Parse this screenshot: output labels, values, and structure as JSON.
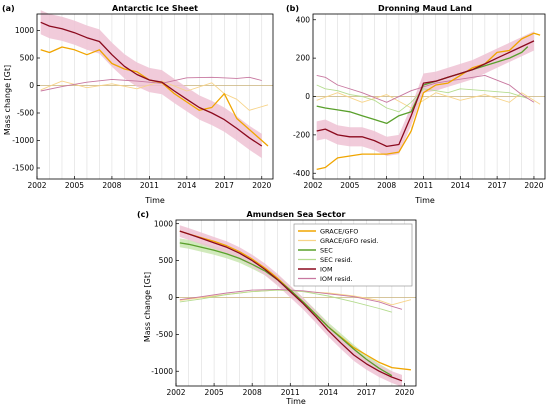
{
  "colors": {
    "grace": "#f0a500",
    "grace_resid": "#f7d48a",
    "sec": "#5aa02c",
    "sec_resid": "#b5dc8f",
    "iom": "#8b0a1e",
    "iom_resid": "#c878a0",
    "band_grace": "#fbe2a8",
    "band_sec": "#c9e6b0",
    "band_iom": "#eec2d4"
  },
  "chart_data": [
    {
      "panel": "(a)",
      "type": "line",
      "title": "Antarctic Ice Sheet",
      "xlabel": "Time",
      "ylabel": "Mass change [Gt]",
      "xlim": [
        2002,
        2020.9
      ],
      "ylim": [
        -1700,
        1300
      ],
      "xticks": [
        2002,
        2005,
        2008,
        2011,
        2014,
        2017,
        2020
      ],
      "yticks": [
        -1500,
        -1000,
        -500,
        0,
        500,
        1000
      ],
      "grid_x": true,
      "series": [
        {
          "key": "grace",
          "x": [
            2002.3,
            2003,
            2004,
            2005,
            2006,
            2007,
            2008,
            2009,
            2010,
            2011,
            2012,
            2013,
            2014,
            2015,
            2016,
            2017,
            2018,
            2019,
            2020.5
          ],
          "y": [
            650,
            600,
            700,
            650,
            560,
            650,
            400,
            300,
            250,
            100,
            50,
            -150,
            -300,
            -450,
            -400,
            -150,
            -600,
            -800,
            -1100
          ]
        },
        {
          "key": "grace_resid",
          "x": [
            2002.3,
            2004,
            2006,
            2008,
            2010,
            2012,
            2014,
            2016,
            2017,
            2018,
            2019,
            2020.5
          ],
          "y": [
            -80,
            80,
            -40,
            30,
            -60,
            80,
            -100,
            50,
            -150,
            -250,
            -450,
            -350
          ]
        },
        {
          "key": "iom",
          "x": [
            2002.3,
            2003,
            2004,
            2005,
            2006,
            2007,
            2008,
            2009,
            2010,
            2011,
            2012,
            2013,
            2014,
            2015,
            2016,
            2017,
            2018,
            2019,
            2020
          ],
          "y": [
            1150,
            1080,
            1030,
            960,
            870,
            800,
            560,
            350,
            200,
            100,
            60,
            -100,
            -250,
            -400,
            -500,
            -620,
            -780,
            -950,
            -1100
          ],
          "band": 220
        },
        {
          "key": "iom_resid",
          "x": [
            2002.3,
            2004,
            2006,
            2008,
            2010,
            2012,
            2014,
            2016,
            2018,
            2019,
            2020
          ],
          "y": [
            -100,
            -20,
            60,
            110,
            80,
            40,
            140,
            150,
            130,
            150,
            90
          ]
        }
      ]
    },
    {
      "panel": "(b)",
      "type": "line",
      "title": "Dronning Maud Land",
      "xlabel": "Time",
      "ylabel": "",
      "xlim": [
        2002,
        2020.9
      ],
      "ylim": [
        -430,
        430
      ],
      "xticks": [
        2002,
        2005,
        2008,
        2011,
        2014,
        2017,
        2020
      ],
      "yticks": [
        -400,
        -200,
        0,
        200,
        400
      ],
      "grid_x": true,
      "series": [
        {
          "key": "grace",
          "x": [
            2002.3,
            2003,
            2004,
            2005,
            2006,
            2007,
            2008,
            2009,
            2010,
            2011,
            2012,
            2013,
            2014,
            2015,
            2016,
            2017,
            2018,
            2019,
            2020,
            2020.5
          ],
          "y": [
            -380,
            -370,
            -320,
            -310,
            -300,
            -300,
            -300,
            -290,
            -180,
            20,
            60,
            70,
            110,
            150,
            170,
            230,
            240,
            300,
            330,
            320
          ]
        },
        {
          "key": "grace_resid",
          "x": [
            2002.3,
            2004,
            2006,
            2008,
            2010,
            2012,
            2014,
            2016,
            2018,
            2019,
            2020.5
          ],
          "y": [
            -20,
            20,
            -30,
            10,
            -60,
            20,
            -20,
            10,
            -30,
            20,
            -40
          ]
        },
        {
          "key": "sec",
          "x": [
            2002.3,
            2003,
            2004,
            2005,
            2006,
            2007,
            2008,
            2009,
            2010,
            2011,
            2012,
            2013,
            2014,
            2015,
            2016,
            2017,
            2018,
            2019,
            2019.5
          ],
          "y": [
            -50,
            -60,
            -70,
            -80,
            -100,
            -120,
            -140,
            -100,
            -80,
            60,
            80,
            100,
            120,
            140,
            160,
            180,
            200,
            230,
            260
          ]
        },
        {
          "key": "sec_resid",
          "x": [
            2002.3,
            2003,
            2004,
            2005,
            2006,
            2007,
            2008,
            2009,
            2010,
            2011,
            2012,
            2013,
            2014,
            2016,
            2018,
            2019.5
          ],
          "y": [
            60,
            40,
            30,
            10,
            0,
            -20,
            -60,
            -80,
            -30,
            40,
            30,
            20,
            40,
            30,
            20,
            -10
          ]
        },
        {
          "key": "iom",
          "x": [
            2002.3,
            2003,
            2004,
            2005,
            2006,
            2007,
            2008,
            2009,
            2010,
            2011,
            2012,
            2013,
            2014,
            2015,
            2016,
            2017,
            2018,
            2019,
            2020
          ],
          "y": [
            -180,
            -170,
            -200,
            -210,
            -210,
            -230,
            -260,
            -250,
            -100,
            70,
            80,
            100,
            120,
            140,
            170,
            200,
            230,
            260,
            290
          ],
          "band": 50
        },
        {
          "key": "iom_resid",
          "x": [
            2002.3,
            2003,
            2004,
            2006,
            2008,
            2010,
            2012,
            2014,
            2016,
            2018,
            2019,
            2020
          ],
          "y": [
            110,
            100,
            60,
            20,
            -30,
            30,
            70,
            90,
            110,
            60,
            10,
            -30
          ]
        }
      ]
    },
    {
      "panel": "(c)",
      "type": "line",
      "title": "Amundsen Sea Sector",
      "xlabel": "Time",
      "ylabel": "Mass change [Gt]",
      "xlim": [
        2002,
        2020.9
      ],
      "ylim": [
        -1200,
        1050
      ],
      "xticks": [
        2002,
        2005,
        2008,
        2011,
        2014,
        2017,
        2020
      ],
      "yticks": [
        -1000,
        -500,
        0,
        500,
        1000
      ],
      "grid_x": true,
      "legend": "top-right",
      "series": [
        {
          "key": "grace",
          "name": "GRACE/GFO",
          "x": [
            2002.3,
            2003,
            2004,
            2005,
            2006,
            2007,
            2008,
            2009,
            2010,
            2011,
            2012,
            2013,
            2014,
            2015,
            2016,
            2017,
            2018,
            2019,
            2020.5
          ],
          "y": [
            900,
            860,
            810,
            760,
            700,
            620,
            520,
            400,
            260,
            100,
            -60,
            -230,
            -400,
            -540,
            -680,
            -780,
            -880,
            -950,
            -980
          ]
        },
        {
          "key": "grace_resid",
          "name": "GRACE/GFO resid.",
          "x": [
            2002.3,
            2004,
            2006,
            2008,
            2010,
            2012,
            2014,
            2016,
            2018,
            2019,
            2020.5
          ],
          "y": [
            -40,
            0,
            40,
            80,
            100,
            80,
            60,
            20,
            -40,
            -100,
            -30
          ]
        },
        {
          "key": "sec",
          "name": "SEC",
          "x": [
            2002.3,
            2003,
            2004,
            2005,
            2006,
            2007,
            2008,
            2009,
            2010,
            2011,
            2012,
            2013,
            2014,
            2015,
            2016,
            2017,
            2018,
            2019
          ],
          "y": [
            740,
            720,
            680,
            640,
            590,
            530,
            450,
            360,
            240,
            100,
            -60,
            -230,
            -400,
            -550,
            -700,
            -840,
            -960,
            -1060
          ],
          "band": 60
        },
        {
          "key": "sec_resid",
          "name": "SEC resid.",
          "x": [
            2002.3,
            2004,
            2006,
            2008,
            2010,
            2012,
            2014,
            2016,
            2018,
            2019
          ],
          "y": [
            -60,
            -20,
            40,
            80,
            100,
            80,
            20,
            -60,
            -150,
            -200
          ]
        },
        {
          "key": "iom",
          "name": "IOM",
          "x": [
            2002.3,
            2003,
            2004,
            2005,
            2006,
            2007,
            2008,
            2009,
            2010,
            2011,
            2012,
            2013,
            2014,
            2015,
            2016,
            2017,
            2018,
            2019,
            2019.8
          ],
          "y": [
            900,
            860,
            800,
            740,
            680,
            600,
            500,
            380,
            240,
            80,
            -80,
            -260,
            -450,
            -620,
            -780,
            -900,
            -1000,
            -1080,
            -1130
          ],
          "band": 80
        },
        {
          "key": "iom_resid",
          "name": "IOM resid.",
          "x": [
            2002.3,
            2004,
            2006,
            2008,
            2010,
            2012,
            2014,
            2016,
            2018,
            2019,
            2019.8
          ],
          "y": [
            -30,
            10,
            60,
            100,
            110,
            90,
            50,
            10,
            -60,
            -120,
            -160
          ]
        }
      ]
    }
  ]
}
